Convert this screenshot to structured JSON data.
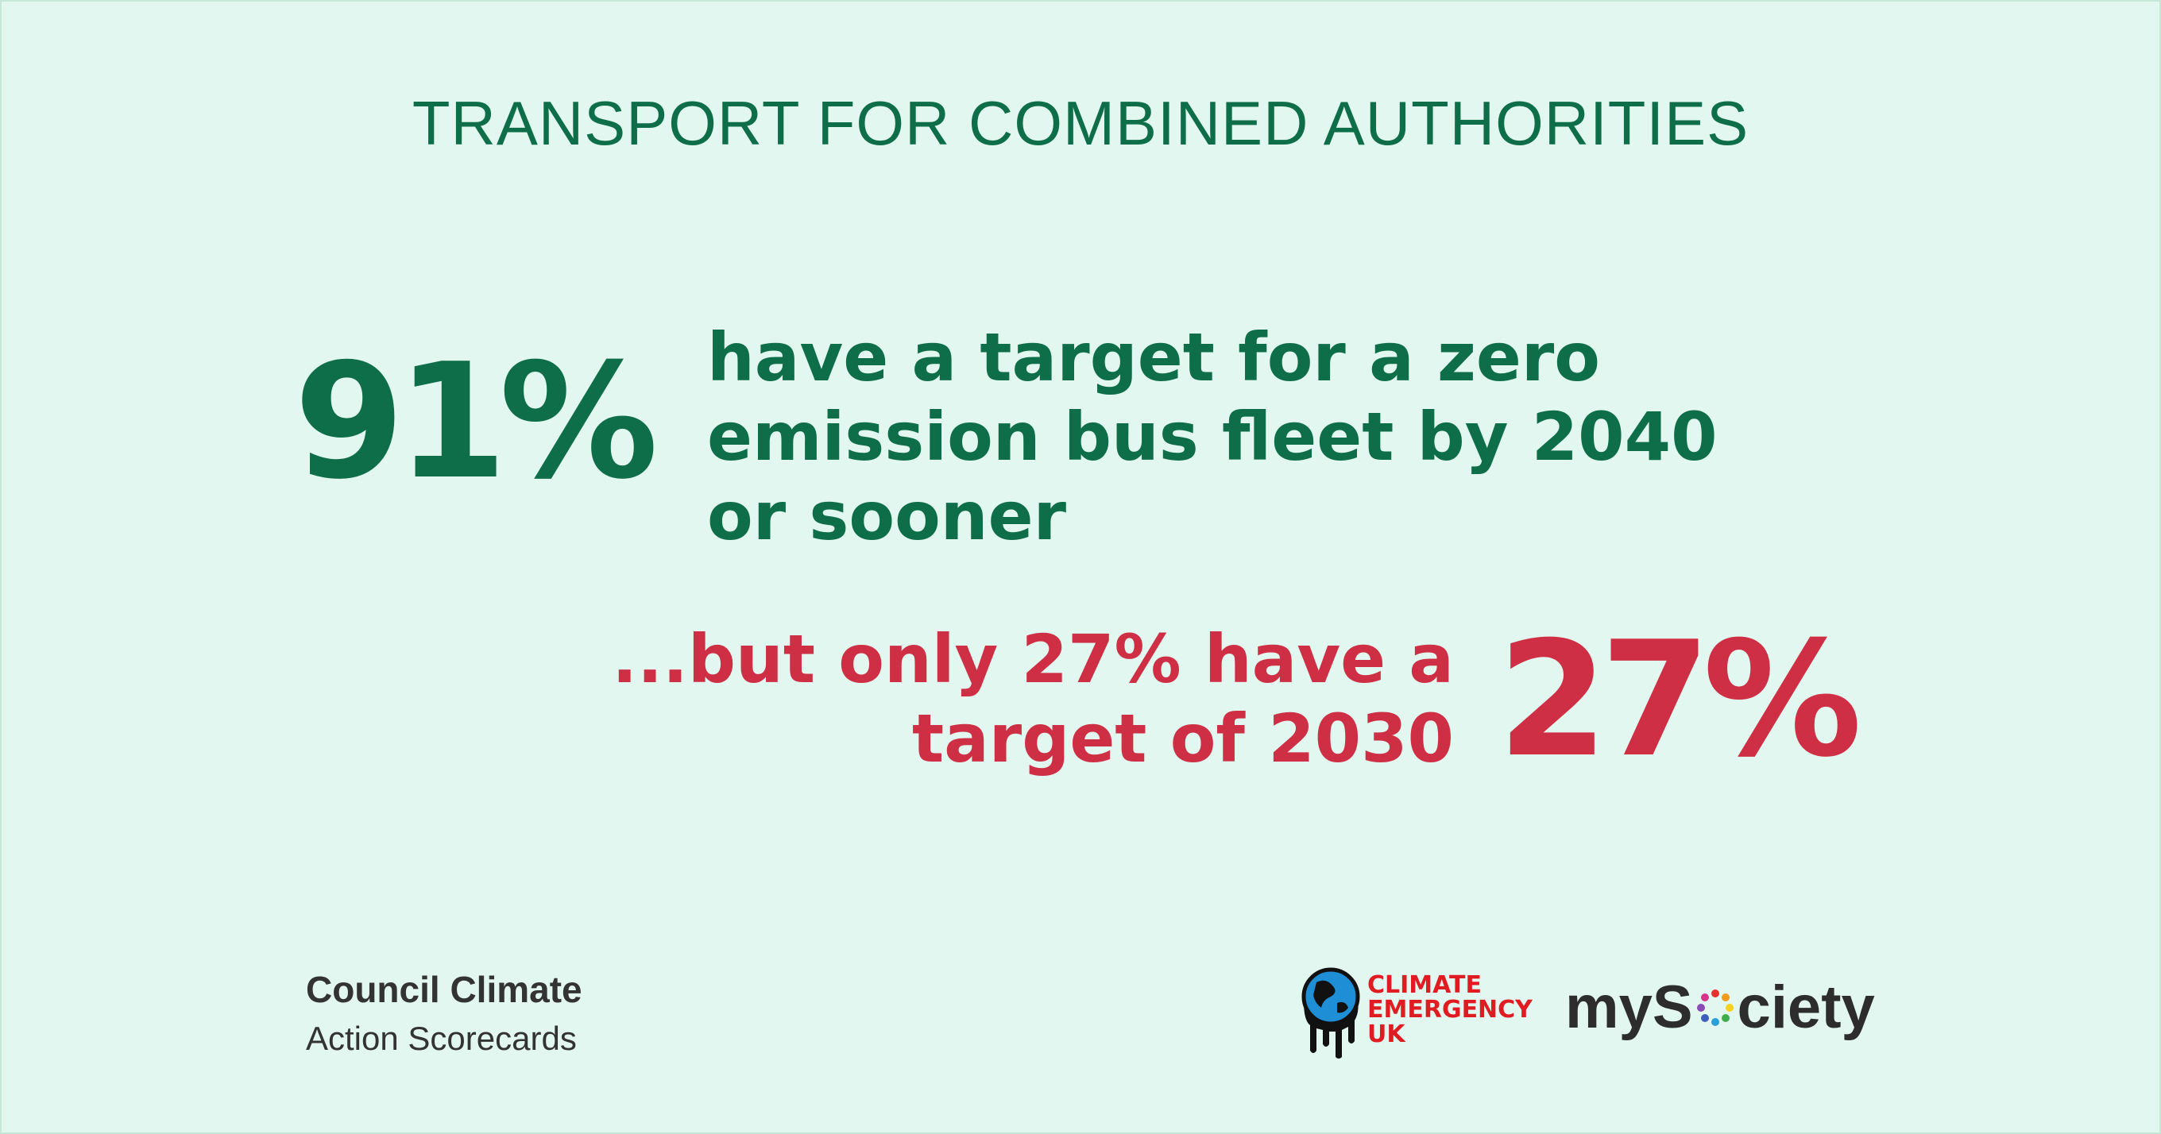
{
  "title": "TRANSPORT FOR COMBINED AUTHORITIES",
  "stat1": {
    "value": "91%",
    "lines": [
      "have a target for a zero",
      "emission bus fleet by 2040",
      "or sooner"
    ]
  },
  "stat2": {
    "value": "27%",
    "lines": [
      "...but only 27% have a",
      "target of 2030"
    ]
  },
  "brand": {
    "line1": "Council Climate",
    "line2": "Action Scorecards"
  },
  "logos": {
    "ceuk_lines": [
      "CLIMATE",
      "EMERGENCY",
      "UK"
    ],
    "mysociety_prefix": "myS",
    "mysociety_suffix": "ciety"
  },
  "colors": {
    "background": "#e2f7ef",
    "green": "#0e6e4a",
    "red": "#cf2f44"
  }
}
